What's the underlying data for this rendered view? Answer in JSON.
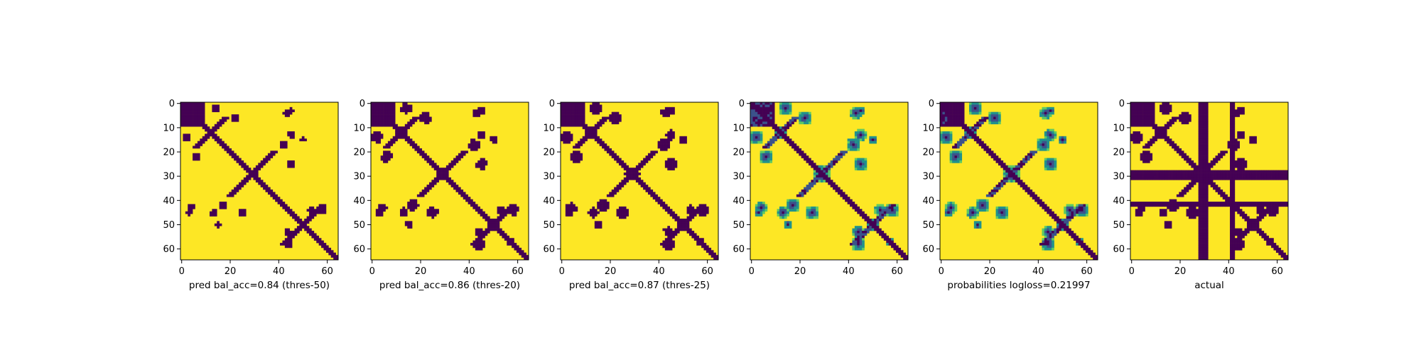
{
  "colors": {
    "dark": "#440154",
    "bright": "#fde725",
    "mid_dark": "#3b528b",
    "mid": "#21918c",
    "mid_light": "#5ec962",
    "axis": "#000000"
  },
  "chart_data": [
    {
      "type": "heatmap",
      "title": "",
      "xlabel": "pred bal_acc=0.84 (thres-50)",
      "ylabel": "",
      "size": 65,
      "xticks": [
        0,
        20,
        40,
        60
      ],
      "yticks": [
        0,
        10,
        20,
        30,
        40,
        50,
        60
      ],
      "xlim": [
        -0.5,
        64.5
      ],
      "ylim": [
        64.5,
        -0.5
      ],
      "value_range": [
        0,
        1
      ],
      "colormap": "viridis",
      "values_description": "binary 65x65 contact map: dark(0)=contact, bright(1)=no contact",
      "contact_regions": [
        [
          0,
          8,
          0,
          8
        ],
        [
          9,
          14,
          9,
          14
        ],
        [
          26,
          31,
          26,
          31
        ],
        [
          46,
          53,
          46,
          53
        ]
      ]
    },
    {
      "type": "heatmap",
      "title": "",
      "xlabel": "pred bal_acc=0.86 (thres-20)",
      "ylabel": "",
      "size": 65,
      "xticks": [
        0,
        20,
        40,
        60
      ],
      "yticks": [
        0,
        10,
        20,
        30,
        40,
        50,
        60
      ],
      "xlim": [
        -0.5,
        64.5
      ],
      "ylim": [
        64.5,
        -0.5
      ],
      "value_range": [
        0,
        1
      ],
      "colormap": "viridis"
    },
    {
      "type": "heatmap",
      "title": "",
      "xlabel": "pred bal_acc=0.87 (thres-25)",
      "ylabel": "",
      "size": 65,
      "xticks": [
        0,
        20,
        40,
        60
      ],
      "yticks": [
        0,
        10,
        20,
        30,
        40,
        50,
        60
      ],
      "xlim": [
        -0.5,
        64.5
      ],
      "ylim": [
        64.5,
        -0.5
      ],
      "value_range": [
        0,
        1
      ],
      "colormap": "viridis"
    },
    {
      "type": "heatmap",
      "title": "",
      "xlabel": "",
      "ylabel": "",
      "size": 65,
      "xticks": [
        0,
        20,
        40,
        60
      ],
      "yticks": [
        0,
        10,
        20,
        30,
        40,
        50,
        60
      ],
      "xlim": [
        -0.5,
        64.5
      ],
      "ylim": [
        64.5,
        -0.5
      ],
      "value_range": [
        0,
        1
      ],
      "colormap": "viridis"
    },
    {
      "type": "heatmap",
      "title": "",
      "xlabel": "probabilities logloss=0.21997",
      "ylabel": "",
      "size": 65,
      "xticks": [
        0,
        20,
        40,
        60
      ],
      "yticks": [
        0,
        10,
        20,
        30,
        40,
        50,
        60
      ],
      "xlim": [
        -0.5,
        64.5
      ],
      "ylim": [
        64.5,
        -0.5
      ],
      "value_range": [
        0,
        1
      ],
      "colormap": "viridis"
    },
    {
      "type": "heatmap",
      "title": "",
      "xlabel": "actual",
      "ylabel": "",
      "size": 65,
      "xticks": [
        0,
        20,
        40,
        60
      ],
      "yticks": [
        0,
        10,
        20,
        30,
        40,
        50,
        60
      ],
      "xlim": [
        -0.5,
        64.5
      ],
      "ylim": [
        64.5,
        -0.5
      ],
      "value_range": [
        0,
        1
      ],
      "colormap": "viridis",
      "stripes": [
        28,
        29,
        30,
        31,
        41,
        42
      ]
    }
  ]
}
